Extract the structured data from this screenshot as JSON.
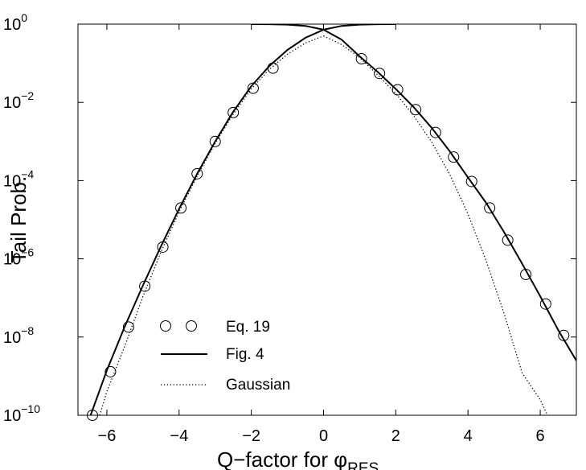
{
  "chart_data": {
    "type": "line",
    "xlabel": "Q−factor for ",
    "xlabel_symbol": "φ",
    "xlabel_subscript": "RES",
    "ylabel": "Tail Prob.",
    "xlim": [
      -6.8,
      7
    ],
    "ylim": [
      1e-10,
      1
    ],
    "yscale": "log",
    "grid": false,
    "legend_position": "lower-left",
    "x_ticks": [
      -6,
      -4,
      -2,
      0,
      2,
      4,
      6
    ],
    "x_tick_labels": [
      "−6",
      "−4",
      "−2",
      "0",
      "2",
      "4",
      "6"
    ],
    "y_ticks": [
      0,
      -2,
      -4,
      -6,
      -8,
      -10
    ],
    "y_tick_bases": [
      "10",
      "10",
      "10",
      "10",
      "10",
      "10"
    ],
    "y_tick_exponents": [
      "0",
      "−2",
      "−4",
      "−6",
      "−8",
      "−10"
    ],
    "series": [
      {
        "name": "Eq. 19",
        "style": "circles",
        "color": "#000000",
        "x": [
          -6.4,
          -5.9,
          -5.4,
          -4.95,
          -4.45,
          -3.95,
          -3.5,
          -3.0,
          -2.5,
          -1.95,
          -1.4,
          1.05,
          1.55,
          2.05,
          2.55,
          3.1,
          3.6,
          4.1,
          4.6,
          5.1,
          5.6,
          6.15,
          6.65
        ],
        "y": [
          1e-10,
          1.3e-09,
          1.8e-08,
          2e-07,
          2e-06,
          2e-05,
          0.00015,
          0.001,
          0.0055,
          0.023,
          0.075,
          0.13,
          0.055,
          0.021,
          0.0065,
          0.0017,
          0.0004,
          9.5e-05,
          2e-05,
          3e-06,
          4e-07,
          7e-08,
          1.1e-08
        ]
      },
      {
        "name": "Fig. 4",
        "style": "solid",
        "color": "#000000",
        "branches": [
          {
            "x": [
              -6.45,
              -6.0,
              -5.5,
              -5.0,
              -4.5,
              -4.0,
              -3.5,
              -3.0,
              -2.5,
              -2.0,
              -1.5,
              -1.0,
              -0.5,
              0.0,
              0.5,
              1.0,
              1.5,
              2.0
            ],
            "y": [
              1e-10,
              1.4e-09,
              1.9e-08,
              2.1e-07,
              2.1e-06,
              1.9e-05,
              0.00015,
              0.001,
              0.0058,
              0.026,
              0.085,
              0.22,
              0.45,
              0.72,
              0.9,
              0.97,
              0.995,
              1.0
            ]
          },
          {
            "x": [
              -2.0,
              -1.5,
              -1.0,
              -0.5,
              0.0,
              0.5,
              1.0,
              1.5,
              2.0,
              2.5,
              3.0,
              3.5,
              4.0,
              4.5,
              5.0,
              5.5,
              6.0,
              6.5,
              7.0
            ],
            "y": [
              1.0,
              0.995,
              0.97,
              0.9,
              0.72,
              0.4,
              0.15,
              0.06,
              0.022,
              0.0075,
              0.0022,
              0.00055,
              0.00012,
              2.7e-05,
              4.8e-06,
              7.5e-07,
              1.1e-07,
              1.5e-08,
              2.5e-09
            ]
          }
        ]
      },
      {
        "name": "Gaussian",
        "style": "dotted",
        "color": "#000000",
        "branches": [
          {
            "x": [
              -6.2,
              -6.0,
              -5.5,
              -5.0,
              -4.5,
              -4.0,
              -3.5,
              -3.0,
              -2.5,
              -2.0,
              -1.5,
              -1.0,
              -0.5,
              0.0
            ],
            "y": [
              1e-10,
              4e-10,
              6e-09,
              1.1e-07,
              1.5e-06,
              1.6e-05,
              0.00013,
              0.0009,
              0.005,
              0.022,
              0.07,
              0.17,
              0.33,
              0.5
            ]
          },
          {
            "x": [
              0.0,
              0.5,
              1.0,
              1.5,
              2.0,
              2.5,
              3.0,
              3.5,
              4.0,
              4.5,
              5.0,
              5.5,
              6.0,
              6.2
            ],
            "y": [
              0.5,
              0.3,
              0.14,
              0.05,
              0.017,
              0.0045,
              0.00095,
              0.00014,
              1.4e-05,
              9e-07,
              4e-08,
              1.2e-09,
              2.5e-10,
              1e-10
            ]
          }
        ]
      }
    ]
  }
}
